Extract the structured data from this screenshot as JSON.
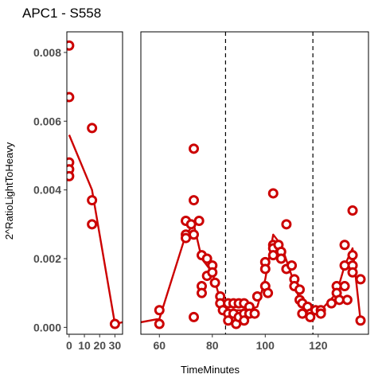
{
  "chart_data": {
    "type": "scatter",
    "title": "APC1 - S558",
    "xlabel": "TimeMinutes",
    "ylabel": "2^RatioLightToHeavy",
    "color": "#cc0000",
    "grid": false,
    "ylim": [
      -0.0002,
      0.0086
    ],
    "yticks": [
      0.0,
      0.002,
      0.004,
      0.006,
      0.008
    ],
    "ytick_labels": [
      "0.000",
      "0.002",
      "0.004",
      "0.006",
      "0.008"
    ],
    "vlines": [
      85,
      118
    ],
    "panels": [
      {
        "name": "early",
        "xlim": [
          -1.5,
          35
        ],
        "xticks": [
          0,
          10,
          20,
          30
        ],
        "xtick_labels": [
          "0",
          "10",
          "20",
          "30"
        ],
        "points": [
          [
            0,
            0.0082
          ],
          [
            0,
            0.0067
          ],
          [
            0,
            0.0048
          ],
          [
            0,
            0.0046
          ],
          [
            0,
            0.0044
          ],
          [
            15,
            0.0058
          ],
          [
            15,
            0.0037
          ],
          [
            15,
            0.003
          ],
          [
            30,
            0.0001
          ]
        ],
        "line": [
          [
            0,
            0.0056
          ],
          [
            15,
            0.004
          ],
          [
            30,
            0.0001
          ],
          [
            35,
            0.00015
          ]
        ]
      },
      {
        "name": "late",
        "xlim": [
          53,
          139
        ],
        "xticks": [
          60,
          80,
          100,
          120
        ],
        "xtick_labels": [
          "60",
          "80",
          "100",
          "120"
        ],
        "points": [
          [
            60,
            0.0005
          ],
          [
            60,
            0.0001
          ],
          [
            70,
            0.0031
          ],
          [
            70,
            0.0027
          ],
          [
            70,
            0.0026
          ],
          [
            72,
            0.003
          ],
          [
            73,
            0.0052
          ],
          [
            73,
            0.0037
          ],
          [
            73,
            0.0027
          ],
          [
            73,
            0.0003
          ],
          [
            75,
            0.0031
          ],
          [
            76,
            0.0021
          ],
          [
            76,
            0.0012
          ],
          [
            76,
            0.001
          ],
          [
            78,
            0.002
          ],
          [
            78,
            0.0015
          ],
          [
            80,
            0.0018
          ],
          [
            80,
            0.0016
          ],
          [
            81,
            0.0013
          ],
          [
            83,
            0.0009
          ],
          [
            83,
            0.0007
          ],
          [
            84,
            0.0005
          ],
          [
            86,
            0.0007
          ],
          [
            86,
            0.0004
          ],
          [
            86,
            0.0002
          ],
          [
            88,
            0.0007
          ],
          [
            88,
            0.0004
          ],
          [
            89,
            0.0001
          ],
          [
            90,
            0.0007
          ],
          [
            90,
            0.0003
          ],
          [
            92,
            0.0007
          ],
          [
            92,
            0.0004
          ],
          [
            92,
            0.0002
          ],
          [
            94,
            0.0006
          ],
          [
            94,
            0.0004
          ],
          [
            96,
            0.0004
          ],
          [
            97,
            0.0009
          ],
          [
            100,
            0.0019
          ],
          [
            100,
            0.0017
          ],
          [
            100,
            0.0012
          ],
          [
            101,
            0.001
          ],
          [
            103,
            0.0039
          ],
          [
            103,
            0.0024
          ],
          [
            103,
            0.0023
          ],
          [
            103,
            0.0021
          ],
          [
            105,
            0.0024
          ],
          [
            106,
            0.0022
          ],
          [
            106,
            0.002
          ],
          [
            108,
            0.003
          ],
          [
            108,
            0.0017
          ],
          [
            110,
            0.0018
          ],
          [
            111,
            0.0014
          ],
          [
            111,
            0.0012
          ],
          [
            113,
            0.0011
          ],
          [
            113,
            0.0008
          ],
          [
            114,
            0.0007
          ],
          [
            114,
            0.0004
          ],
          [
            116,
            0.0006
          ],
          [
            117,
            0.0004
          ],
          [
            117,
            0.0003
          ],
          [
            119,
            0.0005
          ],
          [
            121,
            0.0005
          ],
          [
            121,
            0.0004
          ],
          [
            125,
            0.0007
          ],
          [
            127,
            0.0012
          ],
          [
            127,
            0.001
          ],
          [
            128,
            0.0008
          ],
          [
            130,
            0.0024
          ],
          [
            130,
            0.0018
          ],
          [
            130,
            0.0012
          ],
          [
            131,
            0.0008
          ],
          [
            133,
            0.0034
          ],
          [
            133,
            0.0021
          ],
          [
            133,
            0.0018
          ],
          [
            133,
            0.0016
          ],
          [
            136,
            0.0014
          ],
          [
            136,
            0.0002
          ]
        ],
        "line": [
          [
            53,
            0.00015
          ],
          [
            60,
            0.00025
          ],
          [
            70,
            0.0027
          ],
          [
            73,
            0.003
          ],
          [
            76,
            0.002
          ],
          [
            80,
            0.0016
          ],
          [
            83,
            0.0008
          ],
          [
            86,
            0.0005
          ],
          [
            90,
            0.0005
          ],
          [
            93,
            0.0005
          ],
          [
            97,
            0.0006
          ],
          [
            100,
            0.0014
          ],
          [
            103,
            0.0027
          ],
          [
            106,
            0.0024
          ],
          [
            110,
            0.0015
          ],
          [
            113,
            0.0008
          ],
          [
            117,
            0.0004
          ],
          [
            121,
            0.0005
          ],
          [
            127,
            0.001
          ],
          [
            130,
            0.0018
          ],
          [
            133,
            0.0023
          ],
          [
            136,
            0.0002
          ]
        ]
      }
    ]
  }
}
